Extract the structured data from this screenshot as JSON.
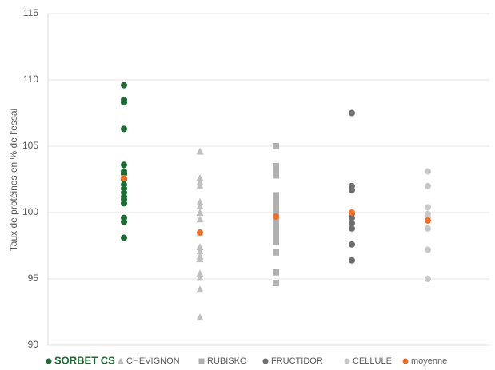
{
  "chart_data": {
    "type": "scatter",
    "ylabel": "Taux de protéines en % de l'essai",
    "ylim": [
      90,
      115
    ],
    "yticks": [
      90,
      95,
      100,
      105,
      110,
      115
    ],
    "grid": true,
    "legend": "bottom",
    "series": [
      {
        "name": "SORBET CS",
        "color": "#1e6b35",
        "marker": "circle",
        "values": [
          109.6,
          108.5,
          108.3,
          106.3,
          103.6,
          103.1,
          102.9,
          102.5,
          102.1,
          101.8,
          101.5,
          101.2,
          101.0,
          100.7,
          99.6,
          99.3,
          98.1
        ]
      },
      {
        "name": "CHEVIGNON",
        "color": "#bfbfbf",
        "marker": "triangle",
        "values": [
          104.6,
          102.6,
          102.3,
          102.0,
          100.8,
          100.5,
          100.0,
          99.5,
          98.5,
          97.4,
          97.1,
          96.7,
          96.5,
          95.4,
          95.1,
          94.2,
          92.1
        ]
      },
      {
        "name": "RUBISKO",
        "color": "#b0b0b0",
        "marker": "square",
        "values": [
          105.0,
          103.5,
          103.1,
          102.8,
          101.3,
          100.9,
          100.5,
          100.2,
          99.8,
          99.4,
          99.0,
          98.6,
          98.2,
          97.8,
          97.0,
          95.5,
          94.7
        ]
      },
      {
        "name": "FRUCTIDOR",
        "color": "#6e6e6e",
        "marker": "circle",
        "values": [
          107.5,
          102.0,
          101.7,
          99.9,
          99.6,
          99.2,
          98.8,
          97.6,
          96.4
        ]
      },
      {
        "name": "CELLULE",
        "color": "#c8c8c8",
        "marker": "circle",
        "values": [
          103.1,
          102.0,
          100.4,
          99.9,
          99.6,
          98.8,
          97.2,
          95.0
        ]
      },
      {
        "name": "moyenne",
        "color": "#f0702a",
        "marker": "circle",
        "values": [
          102.6,
          98.5,
          99.7,
          100.0,
          99.4
        ]
      }
    ]
  }
}
